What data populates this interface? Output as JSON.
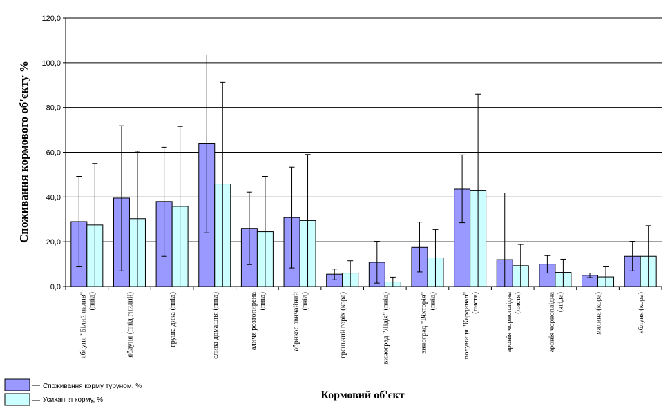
{
  "chart_data": {
    "type": "bar",
    "ylabel": "Споживання кормового об'єкту %",
    "xlabel": "Кормовий об'єкт",
    "ylim": [
      0,
      120
    ],
    "yticks": [
      "0,0",
      "20,0",
      "40,0",
      "60,0",
      "80,0",
      "100,0",
      "120,0"
    ],
    "grid": true,
    "legend_position": "bottom-left",
    "categories": [
      [
        "яблуня \"Білий налив\"",
        "(пнід)"
      ],
      [
        "яблуня  (пнід гнилий)"
      ],
      [
        "груша дика (пнід)"
      ],
      [
        "слива домашня (пнід)"
      ],
      [
        "аличя розтопирена",
        "(пнід)"
      ],
      [
        "абрикос звичайний",
        "(пнід)"
      ],
      [
        "грецький горіх (кора)"
      ],
      [
        "виноград \"Лідія\" (пнід)"
      ],
      [
        "виноград \"Вікторія\"",
        "(пнід)"
      ],
      [
        "полуниця \"Кардинал\"",
        "(листя)"
      ],
      [
        "аронія чорноплідна",
        "(листя)"
      ],
      [
        "аронія чорноплідна",
        "(ягіда)"
      ],
      [
        "малина  (кора)"
      ],
      [
        "яблуня (кора)"
      ]
    ],
    "series": [
      {
        "name": "Споживання корму туруном, %",
        "color": "#9999ff",
        "values": [
          29.0,
          39.5,
          38.0,
          64.0,
          26.0,
          30.8,
          5.5,
          10.8,
          17.5,
          43.5,
          12.0,
          10.0,
          5.0,
          13.5
        ],
        "error_low": [
          8.8,
          7.0,
          13.5,
          24.0,
          9.8,
          8.3,
          3.0,
          1.5,
          6.5,
          28.5,
          0.0,
          6.0,
          4.0,
          7.0
        ],
        "error_high": [
          49.2,
          71.8,
          62.2,
          103.5,
          42.2,
          53.3,
          7.8,
          20.2,
          28.8,
          58.8,
          41.8,
          13.8,
          6.0,
          20.2
        ]
      },
      {
        "name": "Усихання корму, %",
        "color": "#ccffff",
        "values": [
          27.5,
          30.3,
          35.8,
          45.8,
          24.5,
          29.5,
          6.0,
          2.0,
          12.8,
          43.0,
          9.3,
          6.3,
          4.3,
          13.5
        ],
        "error_low": [
          0.0,
          0.0,
          0.0,
          0.0,
          0.0,
          0.0,
          0.0,
          0.0,
          0.0,
          0.0,
          0.0,
          0.0,
          0.0,
          0.0
        ],
        "error_high": [
          55.0,
          60.5,
          71.5,
          91.2,
          49.2,
          59.0,
          11.5,
          4.2,
          25.5,
          86.0,
          18.8,
          12.2,
          8.8,
          27.2
        ]
      }
    ]
  }
}
